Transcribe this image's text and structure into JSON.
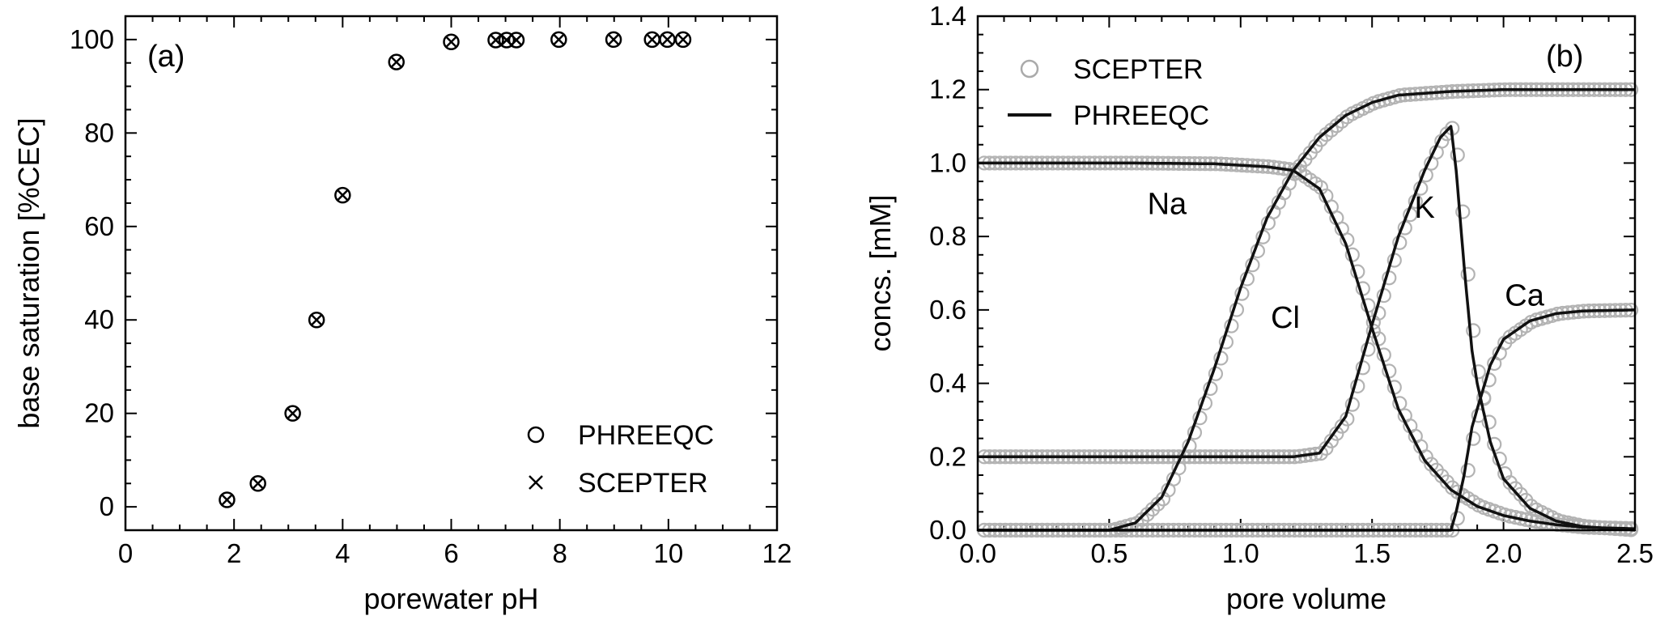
{
  "chart_data": [
    {
      "type": "scatter",
      "panel_label": "(a)",
      "xlabel": "porewater pH",
      "ylabel": "base saturation [%CEC]",
      "xlim": [
        0,
        12
      ],
      "ylim": [
        -5,
        105
      ],
      "xticks": [
        0,
        2,
        4,
        6,
        8,
        10,
        12
      ],
      "yticks": [
        0,
        20,
        40,
        60,
        80,
        100
      ],
      "legend_position": "bottom-right",
      "series": [
        {
          "name": "PHREEQC",
          "marker": "circle",
          "points": [
            [
              1.87,
              1.5
            ],
            [
              2.44,
              5.0
            ],
            [
              3.08,
              20.0
            ],
            [
              3.52,
              40.0
            ],
            [
              4.0,
              66.7
            ],
            [
              4.99,
              95.2
            ],
            [
              6.0,
              99.5
            ],
            [
              6.82,
              99.9
            ],
            [
              7.02,
              99.9
            ],
            [
              7.2,
              99.9
            ],
            [
              7.98,
              100
            ],
            [
              8.99,
              100
            ],
            [
              9.7,
              100
            ],
            [
              9.98,
              100
            ],
            [
              10.27,
              100
            ]
          ]
        },
        {
          "name": "SCEPTER",
          "marker": "x",
          "points": [
            [
              1.87,
              1.5
            ],
            [
              2.44,
              5.0
            ],
            [
              3.08,
              20.0
            ],
            [
              3.52,
              40.0
            ],
            [
              4.0,
              66.7
            ],
            [
              4.99,
              95.2
            ],
            [
              6.0,
              99.5
            ],
            [
              6.82,
              99.9
            ],
            [
              7.02,
              99.9
            ],
            [
              7.2,
              99.9
            ],
            [
              7.98,
              100
            ],
            [
              8.99,
              100
            ],
            [
              9.7,
              100
            ],
            [
              9.98,
              100
            ],
            [
              10.27,
              100
            ]
          ]
        }
      ]
    },
    {
      "type": "line",
      "panel_label": "(b)",
      "xlabel": "pore volume",
      "ylabel": "concs. [mM]",
      "xlim": [
        0,
        2.5
      ],
      "ylim": [
        0,
        1.4
      ],
      "xticks": [
        "0.0",
        "0.5",
        "1.0",
        "1.5",
        "2.0",
        "2.5"
      ],
      "yticks": [
        "0.0",
        "0.2",
        "0.4",
        "0.6",
        "0.8",
        "1.0",
        "1.2",
        "1.4"
      ],
      "legend_position": "top-left",
      "legend": [
        {
          "name": "SCEPTER",
          "style": "open circles"
        },
        {
          "name": "PHREEQC",
          "style": "solid line"
        }
      ],
      "species": [
        {
          "name": "Na",
          "label_at": [
            0.72,
            0.89
          ],
          "points": [
            [
              0.0,
              1.0
            ],
            [
              0.6,
              1.0
            ],
            [
              0.9,
              0.998
            ],
            [
              1.1,
              0.99
            ],
            [
              1.2,
              0.98
            ],
            [
              1.3,
              0.93
            ],
            [
              1.4,
              0.78
            ],
            [
              1.5,
              0.55
            ],
            [
              1.6,
              0.33
            ],
            [
              1.7,
              0.19
            ],
            [
              1.8,
              0.11
            ],
            [
              1.9,
              0.065
            ],
            [
              2.0,
              0.04
            ],
            [
              2.1,
              0.025
            ],
            [
              2.2,
              0.015
            ],
            [
              2.3,
              0.008
            ],
            [
              2.5,
              0.004
            ]
          ]
        },
        {
          "name": "Cl",
          "label_at": [
            1.17,
            0.58
          ],
          "points": [
            [
              0.0,
              0.0
            ],
            [
              0.5,
              0.0
            ],
            [
              0.6,
              0.02
            ],
            [
              0.7,
              0.09
            ],
            [
              0.8,
              0.24
            ],
            [
              0.9,
              0.44
            ],
            [
              1.0,
              0.66
            ],
            [
              1.1,
              0.85
            ],
            [
              1.2,
              0.98
            ],
            [
              1.3,
              1.07
            ],
            [
              1.4,
              1.13
            ],
            [
              1.5,
              1.165
            ],
            [
              1.6,
              1.185
            ],
            [
              1.8,
              1.195
            ],
            [
              2.0,
              1.2
            ],
            [
              2.5,
              1.2
            ]
          ]
        },
        {
          "name": "K",
          "label_at": [
            1.7,
            0.88
          ],
          "points": [
            [
              0.0,
              0.2
            ],
            [
              1.2,
              0.2
            ],
            [
              1.3,
              0.21
            ],
            [
              1.4,
              0.31
            ],
            [
              1.5,
              0.56
            ],
            [
              1.6,
              0.8
            ],
            [
              1.7,
              0.98
            ],
            [
              1.76,
              1.07
            ],
            [
              1.8,
              1.1
            ],
            [
              1.82,
              0.98
            ],
            [
              1.85,
              0.72
            ],
            [
              1.88,
              0.49
            ],
            [
              1.9,
              0.4
            ],
            [
              1.95,
              0.24
            ],
            [
              2.0,
              0.14
            ],
            [
              2.1,
              0.06
            ],
            [
              2.2,
              0.025
            ],
            [
              2.3,
              0.01
            ],
            [
              2.5,
              0.0
            ]
          ]
        },
        {
          "name": "Ca",
          "label_at": [
            2.08,
            0.64
          ],
          "points": [
            [
              0.0,
              0.0
            ],
            [
              1.8,
              0.0
            ],
            [
              1.82,
              0.05
            ],
            [
              1.85,
              0.15
            ],
            [
              1.88,
              0.28
            ],
            [
              1.9,
              0.33
            ],
            [
              1.95,
              0.45
            ],
            [
              2.0,
              0.52
            ],
            [
              2.1,
              0.57
            ],
            [
              2.2,
              0.59
            ],
            [
              2.3,
              0.597
            ],
            [
              2.5,
              0.6
            ]
          ]
        }
      ]
    }
  ]
}
